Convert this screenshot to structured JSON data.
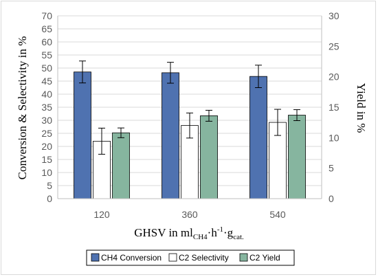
{
  "chart_data": {
    "type": "bar",
    "categories": [
      "120",
      "360",
      "540"
    ],
    "xlabel": {
      "main": "GHSV in ml",
      "sub1": "CH4",
      "mid": "·h",
      "sup": "-1",
      "mid2": "·g",
      "sub2": "cat."
    },
    "ylabel": "Conversion & Selectivity in %",
    "y2label": "Yield in %",
    "ylim": [
      0,
      70
    ],
    "y2lim": [
      0,
      30
    ],
    "yticks": [
      "0",
      "5",
      "10",
      "15",
      "20",
      "25",
      "30",
      "35",
      "40",
      "45",
      "50",
      "55",
      "60",
      "65",
      "70"
    ],
    "y2ticks": [
      "0",
      "5",
      "10",
      "15",
      "20",
      "25",
      "30"
    ],
    "grid": true,
    "legend_position": "bottom",
    "series": [
      {
        "name": "CH4 Conversion",
        "axis": "left",
        "color": "#4f72b0",
        "values": [
          48.5,
          48.2,
          46.8
        ],
        "error": [
          4.2,
          4.0,
          4.3
        ]
      },
      {
        "name": "C2 Selectivity",
        "axis": "left",
        "color": "#ffffff",
        "values": [
          22.0,
          28.0,
          29.2
        ],
        "error": [
          5.0,
          4.8,
          5.0
        ]
      },
      {
        "name": "C2 Yield",
        "axis": "right",
        "color": "#86b59f",
        "values": [
          10.8,
          13.6,
          13.7
        ],
        "error": [
          0.8,
          0.9,
          0.9
        ]
      }
    ]
  }
}
